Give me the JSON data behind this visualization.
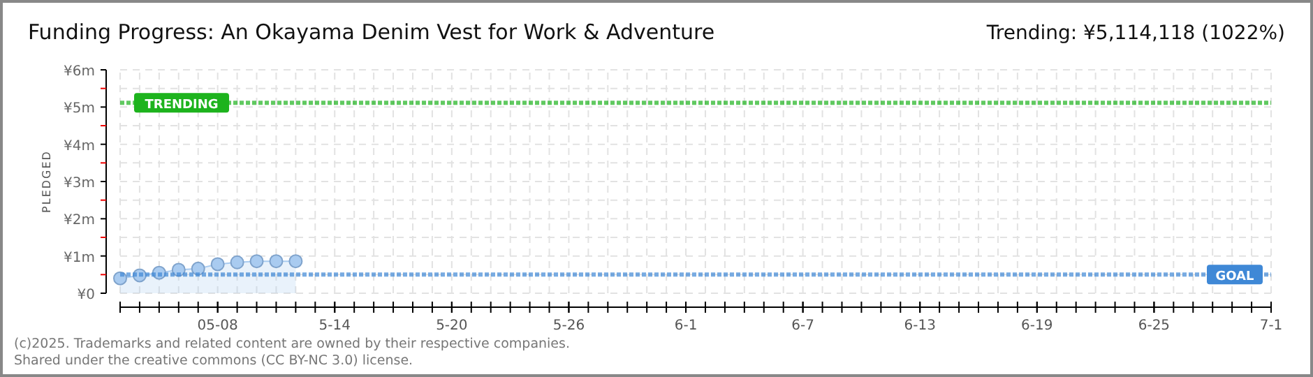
{
  "chart_data": {
    "type": "area",
    "title": "Funding Progress: An Okayama Denim Vest for Work & Adventure",
    "subtitle": "Trending:  ¥5,114,118 (1022%)",
    "ylabel": "PLEDGED",
    "x": [
      "2025-05-03",
      "2025-05-04",
      "2025-05-05",
      "2025-05-06",
      "2025-05-07",
      "2025-05-08",
      "2025-05-09",
      "2025-05-10",
      "2025-05-11",
      "2025-05-12"
    ],
    "series": [
      {
        "color": "#a9cbf0",
        "values": [
          400000,
          480000,
          550000,
          630000,
          660000,
          780000,
          830000,
          860000,
          860000,
          860000
        ]
      }
    ],
    "xlim": [
      "2025-05-03",
      "2025-07-01"
    ],
    "xticks": [
      {
        "value": "2025-05-08",
        "label": "05-08"
      },
      {
        "value": "2025-05-14",
        "label": "5-14"
      },
      {
        "value": "2025-05-20",
        "label": "5-20"
      },
      {
        "value": "2025-05-26",
        "label": "5-26"
      },
      {
        "value": "2025-06-01",
        "label": "6-1"
      },
      {
        "value": "2025-06-07",
        "label": "6-7"
      },
      {
        "value": "2025-06-13",
        "label": "6-13"
      },
      {
        "value": "2025-06-19",
        "label": "6-19"
      },
      {
        "value": "2025-06-25",
        "label": "6-25"
      },
      {
        "value": "2025-07-01",
        "label": "7-1"
      }
    ],
    "ylim": [
      0,
      6000000
    ],
    "yticks": [
      {
        "value": 0,
        "label": "¥0"
      },
      {
        "value": 500000,
        "label": null
      },
      {
        "value": 1000000,
        "label": "¥1m"
      },
      {
        "value": 1500000,
        "label": null
      },
      {
        "value": 2000000,
        "label": "¥2m"
      },
      {
        "value": 2500000,
        "label": null
      },
      {
        "value": 3000000,
        "label": "¥3m"
      },
      {
        "value": 3500000,
        "label": null
      },
      {
        "value": 4000000,
        "label": "¥4m"
      },
      {
        "value": 4500000,
        "label": null
      },
      {
        "value": 5000000,
        "label": "¥5m"
      },
      {
        "value": 5500000,
        "label": null
      },
      {
        "value": 6000000,
        "label": "¥6m"
      }
    ],
    "ref_lines": [
      {
        "axis": "y",
        "value": 5114118,
        "label": "TRENDING",
        "color": "#1db31d",
        "line_style": "dotted"
      },
      {
        "axis": "y",
        "value": 500000,
        "label": "GOAL",
        "color": "#3f88d6",
        "line_style": "dotted"
      }
    ],
    "grid": true,
    "marker": "circle",
    "annotations": [
      "(c)2025. Trademarks and related content are owned by their respective companies.",
      "Shared under the creative commons (CC BY-NC 3.0) license."
    ]
  }
}
